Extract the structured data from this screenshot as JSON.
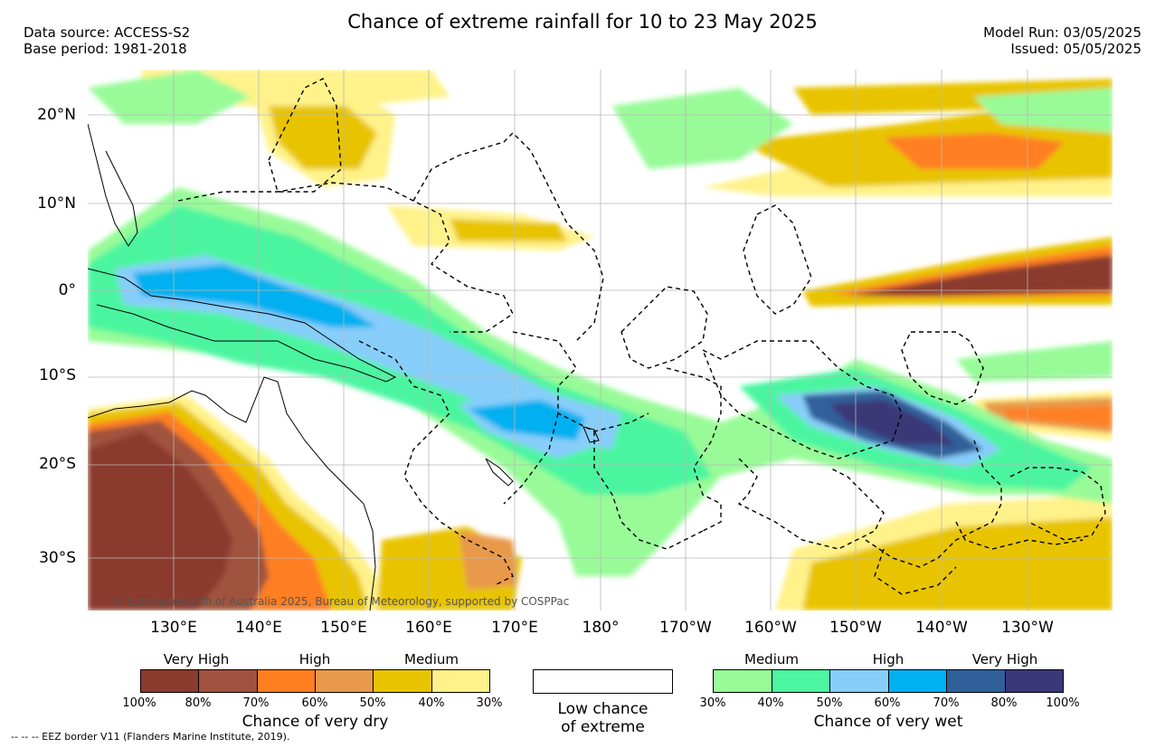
{
  "title": "Chance of extreme rainfall for 10 to 23 May 2025",
  "data_source": "Data source: ACCESS-S2",
  "base_period": "Base period: 1981-2018",
  "model_run": "Model Run: 03/05/2025",
  "issued": "Issued: 05/05/2025",
  "lat_labels": [
    "20°N",
    "10°N",
    "0°",
    "10°S",
    "20°S",
    "30°S"
  ],
  "lon_labels": [
    "130°E",
    "140°E",
    "150°E",
    "160°E",
    "170°E",
    "180°",
    "170°W",
    "160°W",
    "150°W",
    "140°W",
    "130°W"
  ],
  "credit": "© Commonwealth of Australia 2025, Bureau of Meteorology, supported by COSPPac",
  "eez_note": "-- -- -- EEZ border V11 (Flanders Marine Institute, 2019).",
  "dry_legend": {
    "levels": [
      "Very High",
      "High",
      "Medium"
    ],
    "ticks": [
      "100%",
      "80%",
      "70%",
      "60%",
      "50%",
      "40%",
      "30%"
    ],
    "caption": "Chance of very dry",
    "colors": [
      "#8b3a2e",
      "#a0523e",
      "#ff7f20",
      "#e8994a",
      "#e8c400",
      "#fff28a"
    ]
  },
  "low_legend": {
    "caption_line1": "Low chance",
    "caption_line2": "of extreme"
  },
  "wet_legend": {
    "levels": [
      "Medium",
      "High",
      "Very High"
    ],
    "ticks": [
      "30%",
      "40%",
      "50%",
      "60%",
      "70%",
      "80%",
      "100%"
    ],
    "caption": "Chance of very wet",
    "colors": [
      "#98fb98",
      "#4cf5a0",
      "#87cefa",
      "#00b0f0",
      "#30609a",
      "#3a3878"
    ]
  }
}
